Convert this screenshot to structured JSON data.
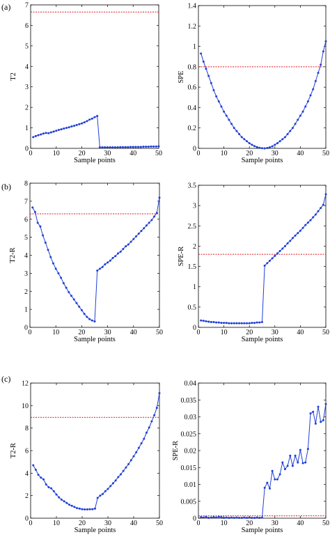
{
  "panel_labels": [
    "(a)",
    "(b)",
    "(c)"
  ],
  "colors": {
    "series": "#1f3fd6",
    "threshold": "#e0141e",
    "axis": "#000000"
  },
  "chart_data": [
    {
      "type": "line",
      "panel": "(a)",
      "xlabel": "Sample points",
      "ylabel": "T2",
      "xlim": [
        0,
        50
      ],
      "ylim": [
        0,
        7
      ],
      "xticks": [
        0,
        10,
        20,
        30,
        40,
        50
      ],
      "yticks": [
        0,
        1,
        2,
        3,
        4,
        5,
        6,
        7
      ],
      "xtick_labels": [
        "0",
        "10",
        "20",
        "30",
        "40",
        "50"
      ],
      "ytick_labels": [
        "0",
        "1",
        "2",
        "3",
        "4",
        "5",
        "6",
        "7"
      ],
      "x": [
        1,
        2,
        3,
        4,
        5,
        6,
        7,
        8,
        9,
        10,
        11,
        12,
        13,
        14,
        15,
        16,
        17,
        18,
        19,
        20,
        21,
        22,
        23,
        24,
        25,
        26,
        27,
        28,
        29,
        30,
        31,
        32,
        33,
        34,
        35,
        36,
        37,
        38,
        39,
        40,
        41,
        42,
        43,
        44,
        45,
        46,
        47,
        48,
        49,
        50
      ],
      "series": [
        {
          "values": [
            0.55,
            0.6,
            0.64,
            0.68,
            0.72,
            0.75,
            0.74,
            0.78,
            0.82,
            0.86,
            0.9,
            0.93,
            0.97,
            1.0,
            1.03,
            1.07,
            1.1,
            1.14,
            1.18,
            1.22,
            1.27,
            1.33,
            1.4,
            1.45,
            1.52,
            1.58,
            0.05,
            0.05,
            0.05,
            0.05,
            0.05,
            0.05,
            0.05,
            0.05,
            0.06,
            0.06,
            0.06,
            0.06,
            0.07,
            0.07,
            0.07,
            0.07,
            0.07,
            0.08,
            0.08,
            0.08,
            0.09,
            0.09,
            0.09,
            0.1
          ]
        }
      ],
      "threshold": 6.65
    },
    {
      "type": "line",
      "panel": "(a)",
      "xlabel": "Sample points",
      "ylabel": "SPE",
      "xlim": [
        0,
        50
      ],
      "ylim": [
        0,
        1.4
      ],
      "xticks": [
        0,
        10,
        20,
        30,
        40,
        50
      ],
      "yticks": [
        0,
        0.2,
        0.4,
        0.6,
        0.8,
        1,
        1.2,
        1.4
      ],
      "xtick_labels": [
        "0",
        "10",
        "20",
        "30",
        "40",
        "50"
      ],
      "ytick_labels": [
        "0",
        "0.2",
        "0.4",
        "0.6",
        "0.8",
        "1",
        "1.2",
        "1.4"
      ],
      "x": [
        1,
        2,
        3,
        4,
        5,
        6,
        7,
        8,
        9,
        10,
        11,
        12,
        13,
        14,
        15,
        16,
        17,
        18,
        19,
        20,
        21,
        22,
        23,
        24,
        25,
        26,
        27,
        28,
        29,
        30,
        31,
        32,
        33,
        34,
        35,
        36,
        37,
        38,
        39,
        40,
        41,
        42,
        43,
        44,
        45,
        46,
        47,
        48,
        49,
        50
      ],
      "series": [
        {
          "values": [
            0.93,
            0.85,
            0.78,
            0.71,
            0.64,
            0.57,
            0.51,
            0.46,
            0.41,
            0.36,
            0.32,
            0.28,
            0.24,
            0.2,
            0.17,
            0.14,
            0.11,
            0.09,
            0.07,
            0.05,
            0.035,
            0.022,
            0.012,
            0.005,
            0.002,
            0.0,
            0.003,
            0.01,
            0.02,
            0.035,
            0.05,
            0.07,
            0.09,
            0.11,
            0.14,
            0.17,
            0.2,
            0.24,
            0.28,
            0.32,
            0.36,
            0.41,
            0.46,
            0.52,
            0.58,
            0.66,
            0.74,
            0.82,
            0.95,
            1.05
          ]
        }
      ],
      "threshold": 0.8
    },
    {
      "type": "line",
      "panel": "(b)",
      "xlabel": "Sample points",
      "ylabel": "T2-R",
      "xlim": [
        0,
        50
      ],
      "ylim": [
        0,
        8
      ],
      "xticks": [
        0,
        10,
        20,
        30,
        40,
        50
      ],
      "yticks": [
        0,
        1,
        2,
        3,
        4,
        5,
        6,
        7,
        8
      ],
      "xtick_labels": [
        "0",
        "10",
        "20",
        "30",
        "40",
        "50"
      ],
      "ytick_labels": [
        "0",
        "1",
        "2",
        "3",
        "4",
        "5",
        "6",
        "7",
        "8"
      ],
      "x": [
        1,
        2,
        3,
        4,
        5,
        6,
        7,
        8,
        9,
        10,
        11,
        12,
        13,
        14,
        15,
        16,
        17,
        18,
        19,
        20,
        21,
        22,
        23,
        24,
        25,
        26,
        27,
        28,
        29,
        30,
        31,
        32,
        33,
        34,
        35,
        36,
        37,
        38,
        39,
        40,
        41,
        42,
        43,
        44,
        45,
        46,
        47,
        48,
        49,
        50
      ],
      "series": [
        {
          "values": [
            6.65,
            6.4,
            5.8,
            5.6,
            5.1,
            4.7,
            4.3,
            3.9,
            3.55,
            3.25,
            3.0,
            2.75,
            2.45,
            2.2,
            1.95,
            1.75,
            1.55,
            1.35,
            1.15,
            0.95,
            0.75,
            0.58,
            0.46,
            0.38,
            0.33,
            3.15,
            3.25,
            3.35,
            3.5,
            3.6,
            3.7,
            3.85,
            3.95,
            4.1,
            4.2,
            4.35,
            4.5,
            4.6,
            4.75,
            4.9,
            5.05,
            5.2,
            5.35,
            5.5,
            5.65,
            5.8,
            5.95,
            6.15,
            6.35,
            7.2
          ]
        }
      ],
      "threshold": 6.3
    },
    {
      "type": "line",
      "panel": "(b)",
      "xlabel": "Sample points",
      "ylabel": "SPE-R",
      "xlim": [
        0,
        50
      ],
      "ylim": [
        0,
        3.5
      ],
      "xticks": [
        0,
        10,
        20,
        30,
        40,
        50
      ],
      "yticks": [
        0,
        0.5,
        1,
        1.5,
        2,
        2.5,
        3,
        3.5
      ],
      "xtick_labels": [
        "0",
        "10",
        "20",
        "30",
        "40",
        "50"
      ],
      "ytick_labels": [
        "0",
        "0.5",
        "1",
        "1.5",
        "2",
        "2.5",
        "3",
        "3.5"
      ],
      "x": [
        1,
        2,
        3,
        4,
        5,
        6,
        7,
        8,
        9,
        10,
        11,
        12,
        13,
        14,
        15,
        16,
        17,
        18,
        19,
        20,
        21,
        22,
        23,
        24,
        25,
        26,
        27,
        28,
        29,
        30,
        31,
        32,
        33,
        34,
        35,
        36,
        37,
        38,
        39,
        40,
        41,
        42,
        43,
        44,
        45,
        46,
        47,
        48,
        49,
        50
      ],
      "series": [
        {
          "values": [
            0.17,
            0.16,
            0.15,
            0.14,
            0.13,
            0.13,
            0.12,
            0.12,
            0.11,
            0.11,
            0.11,
            0.1,
            0.1,
            0.1,
            0.1,
            0.1,
            0.1,
            0.1,
            0.1,
            0.1,
            0.11,
            0.11,
            0.12,
            0.12,
            0.13,
            1.52,
            1.58,
            1.64,
            1.7,
            1.76,
            1.82,
            1.88,
            1.94,
            2.0,
            2.07,
            2.13,
            2.2,
            2.26,
            2.32,
            2.38,
            2.45,
            2.52,
            2.58,
            2.64,
            2.71,
            2.78,
            2.86,
            2.94,
            3.02,
            3.28
          ]
        }
      ],
      "threshold": 1.8
    },
    {
      "type": "line",
      "panel": "(c)",
      "xlabel": "Sample points",
      "ylabel": "T2-R",
      "xlim": [
        0,
        50
      ],
      "ylim": [
        0,
        12
      ],
      "xticks": [
        0,
        10,
        20,
        30,
        40,
        50
      ],
      "yticks": [
        0,
        2,
        4,
        6,
        8,
        10,
        12
      ],
      "xtick_labels": [
        "0",
        "10",
        "20",
        "30",
        "40",
        "50"
      ],
      "ytick_labels": [
        "0",
        "2",
        "4",
        "6",
        "8",
        "10",
        "12"
      ],
      "x": [
        1,
        2,
        3,
        4,
        5,
        6,
        7,
        8,
        9,
        10,
        11,
        12,
        13,
        14,
        15,
        16,
        17,
        18,
        19,
        20,
        21,
        22,
        23,
        24,
        25,
        26,
        27,
        28,
        29,
        30,
        31,
        32,
        33,
        34,
        35,
        36,
        37,
        38,
        39,
        40,
        41,
        42,
        43,
        44,
        45,
        46,
        47,
        48,
        49,
        50
      ],
      "series": [
        {
          "values": [
            4.7,
            4.3,
            3.85,
            3.6,
            3.45,
            3.0,
            2.75,
            2.65,
            2.4,
            2.1,
            1.85,
            1.65,
            1.5,
            1.35,
            1.2,
            1.1,
            1.0,
            0.9,
            0.85,
            0.8,
            0.78,
            0.78,
            0.8,
            0.8,
            0.85,
            1.8,
            2.0,
            2.15,
            2.4,
            2.6,
            2.85,
            3.1,
            3.35,
            3.65,
            3.9,
            4.2,
            4.5,
            4.8,
            5.15,
            5.5,
            5.85,
            6.25,
            6.65,
            7.05,
            7.6,
            8.05,
            8.6,
            9.15,
            9.8,
            11.1
          ]
        }
      ],
      "threshold": 8.95
    },
    {
      "type": "line",
      "panel": "(c)",
      "xlabel": "Sample points",
      "ylabel": "SPE-R",
      "xlim": [
        0,
        50
      ],
      "ylim": [
        0,
        0.04
      ],
      "xticks": [
        0,
        10,
        20,
        30,
        40,
        50
      ],
      "yticks": [
        0,
        0.005,
        0.01,
        0.015,
        0.02,
        0.025,
        0.03,
        0.035,
        0.04
      ],
      "xtick_labels": [
        "0",
        "10",
        "20",
        "30",
        "40",
        "50"
      ],
      "ytick_labels": [
        "0",
        "0.005",
        "0.01",
        "0.015",
        "0.02",
        "0.025",
        "0.03",
        "0.035",
        "0.04"
      ],
      "x": [
        1,
        2,
        3,
        4,
        5,
        6,
        7,
        8,
        9,
        10,
        11,
        12,
        13,
        14,
        15,
        16,
        17,
        18,
        19,
        20,
        21,
        22,
        23,
        24,
        25,
        26,
        27,
        28,
        29,
        30,
        31,
        32,
        33,
        34,
        35,
        36,
        37,
        38,
        39,
        40,
        41,
        42,
        43,
        44,
        45,
        46,
        47,
        48,
        49,
        50
      ],
      "series": [
        {
          "values": [
            0.0003,
            0.0002,
            0.0004,
            0.0001,
            0.0002,
            0.0003,
            0.0002,
            0.0004,
            0.0003,
            0.0001,
            0.0002,
            0.0001,
            0.0002,
            0.0001,
            0.0002,
            0.0001,
            0.0001,
            0.0002,
            0.0001,
            0.0002,
            0.0001,
            0.0001,
            0.0002,
            0.0001,
            0.0002,
            0.009,
            0.0105,
            0.0088,
            0.014,
            0.0115,
            0.0115,
            0.013,
            0.0165,
            0.0145,
            0.0155,
            0.0185,
            0.0155,
            0.0185,
            0.0165,
            0.0202,
            0.0163,
            0.0165,
            0.0205,
            0.031,
            0.0315,
            0.028,
            0.033,
            0.0285,
            0.029,
            0.0338
          ]
        }
      ],
      "threshold": 0.0007
    }
  ]
}
